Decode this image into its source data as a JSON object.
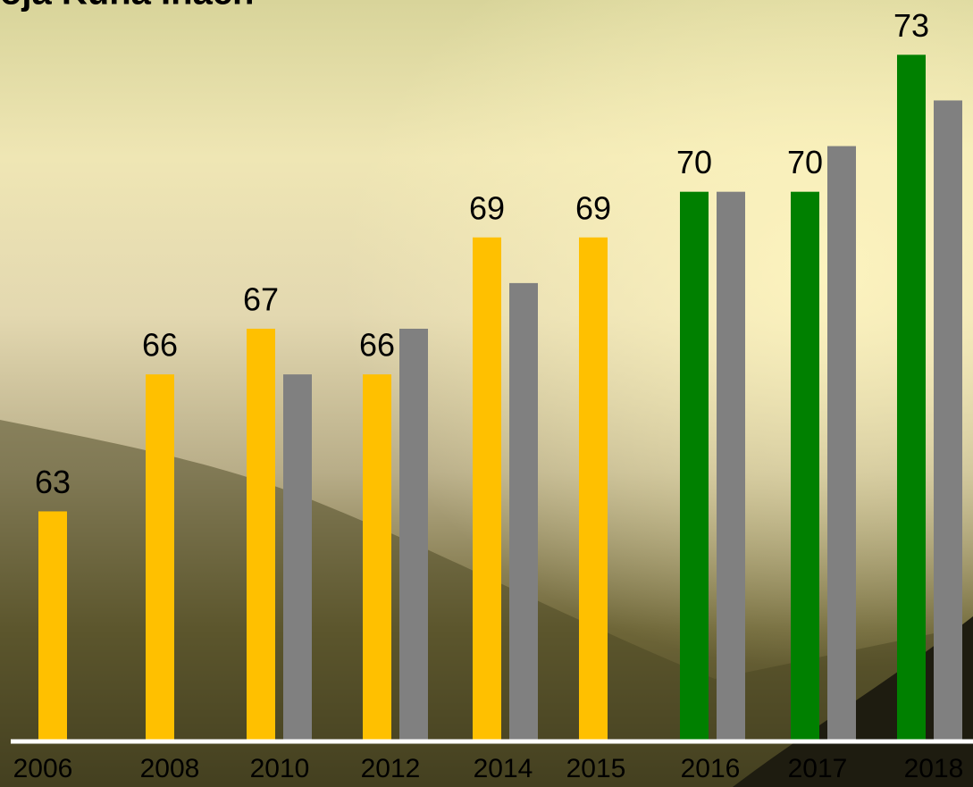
{
  "chart_data": {
    "type": "bar",
    "title": "oja Kuna Inach",
    "categories": [
      "2006",
      "2008",
      "2010",
      "2012",
      "2014",
      "2015",
      "2016",
      "2017",
      "2018"
    ],
    "series": [
      {
        "colors": [
          "#ffc000",
          "#ffc000",
          "#ffc000",
          "#ffc000",
          "#ffc000",
          "#ffc000",
          "#008000",
          "#008000",
          "#008000"
        ],
        "values": [
          63,
          66,
          67,
          66,
          69,
          69,
          70,
          70,
          73
        ],
        "data_labels": true
      },
      {
        "color": "#808080",
        "values": [
          null,
          null,
          66,
          67,
          68,
          null,
          70,
          71,
          72
        ],
        "data_labels": false
      }
    ],
    "ylim": [
      58,
      74.2
    ]
  }
}
